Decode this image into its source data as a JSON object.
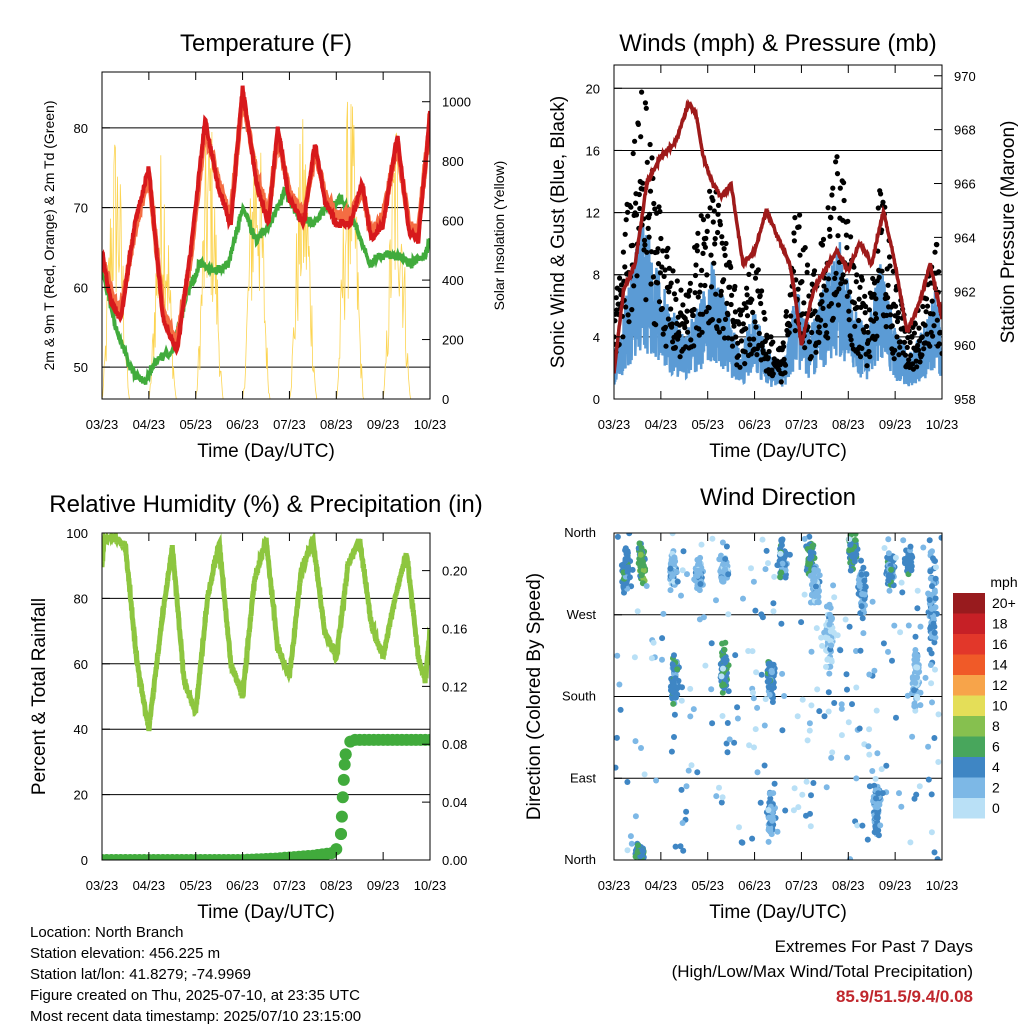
{
  "chart_data": [
    {
      "id": "temperature",
      "type": "line",
      "title": "Temperature (F)",
      "xlabel": "Time (Day/UTC)",
      "ylabel": "2m & 9m T (Red, Orange) & 2m Td (Green)",
      "ylabel_right": "Solar Insolation (Yellow)",
      "x_ticks": [
        "03/23",
        "04/23",
        "05/23",
        "06/23",
        "07/23",
        "08/23",
        "09/23",
        "10/23"
      ],
      "xlim": [
        0,
        7
      ],
      "ylim": [
        46,
        87
      ],
      "y_ticks": [
        50,
        60,
        70,
        80
      ],
      "ylim_right": [
        0,
        1100
      ],
      "y_ticks_right": [
        0,
        200,
        400,
        600,
        800,
        1000
      ],
      "grid": true,
      "series": [
        {
          "label": "2m T",
          "color": "#d7191c",
          "x": [
            0,
            0.2,
            0.4,
            0.7,
            1.0,
            1.3,
            1.6,
            1.9,
            2.2,
            2.5,
            2.75,
            3.0,
            3.3,
            3.55,
            3.75,
            4.0,
            4.3,
            4.55,
            4.75,
            5.0,
            5.3,
            5.55,
            5.75,
            6.0,
            6.3,
            6.55,
            6.75,
            7.0
          ],
          "y": [
            64,
            58,
            56,
            68,
            75,
            56,
            52,
            65,
            81,
            72,
            68,
            85,
            73,
            68,
            80,
            71,
            68,
            78,
            71,
            68,
            68,
            73,
            66,
            68,
            79,
            67,
            66,
            82
          ]
        },
        {
          "label": "9m T",
          "color": "#f46d43",
          "x": [
            0,
            0.2,
            0.4,
            0.7,
            1.0,
            1.3,
            1.6,
            1.9,
            2.2,
            2.5,
            2.75,
            3.0,
            3.3,
            3.55,
            3.75,
            4.0,
            4.3,
            4.55,
            4.75,
            5.0,
            5.3,
            5.55,
            5.75,
            6.0,
            6.3,
            6.55,
            6.75,
            7.0
          ],
          "y": [
            64,
            59,
            57,
            67,
            74,
            57,
            53,
            64,
            80,
            73,
            69,
            84,
            74,
            69,
            79,
            72,
            69,
            77,
            72,
            69,
            69,
            72,
            67,
            69,
            78,
            68,
            67,
            81
          ]
        },
        {
          "label": "2m Td",
          "color": "#41ab3c",
          "x": [
            0,
            0.3,
            0.6,
            0.9,
            1.2,
            1.5,
            1.8,
            2.1,
            2.4,
            2.7,
            3.0,
            3.3,
            3.6,
            3.9,
            4.2,
            4.5,
            4.8,
            5.1,
            5.4,
            5.7,
            6.0,
            6.3,
            6.6,
            6.9,
            7.0
          ],
          "y": [
            62,
            55,
            50,
            48,
            51,
            52,
            59,
            63,
            62,
            63,
            70,
            66,
            68,
            72,
            69,
            68,
            70,
            71,
            68,
            63,
            64,
            64,
            63,
            64,
            66
          ]
        },
        {
          "label": "Solar Insolation",
          "color": "#fcd451",
          "axis": "right",
          "peak_x": [
            0.3,
            1.3,
            2.3,
            3.3,
            4.3,
            5.3,
            6.3
          ],
          "peak_y": [
            950,
            880,
            1000,
            1050,
            960,
            1080,
            1020
          ]
        }
      ]
    },
    {
      "id": "winds",
      "type": "scatter",
      "title": "Winds (mph) & Pressure (mb)",
      "xlabel": "Time (Day/UTC)",
      "ylabel": "Sonic Wind & Gust (Blue, Black)",
      "ylabel_right": "Station Pressure (Maroon)",
      "x_ticks": [
        "03/23",
        "04/23",
        "05/23",
        "06/23",
        "07/23",
        "08/23",
        "09/23",
        "10/23"
      ],
      "xlim": [
        0,
        7
      ],
      "ylim": [
        0,
        21.5
      ],
      "y_ticks": [
        0,
        4,
        8,
        12,
        16,
        20
      ],
      "ylim_right": [
        958,
        970.4
      ],
      "y_ticks_right": [
        958,
        960,
        962,
        964,
        966,
        968,
        970
      ],
      "grid": true,
      "series": [
        {
          "label": "Gust",
          "color": "#000000",
          "x": [
            0,
            0.3,
            0.6,
            0.9,
            1.2,
            1.5,
            1.8,
            2.1,
            2.4,
            2.7,
            3.0,
            3.3,
            3.6,
            3.9,
            4.2,
            4.5,
            4.8,
            5.1,
            5.4,
            5.7,
            6.0,
            6.3,
            6.6,
            6.9,
            7.0
          ],
          "y": [
            5,
            12,
            19,
            13,
            8,
            6,
            10,
            14,
            9,
            5,
            9,
            4,
            3,
            12,
            7,
            10,
            16,
            9,
            6,
            13,
            7,
            4,
            6,
            10,
            5
          ]
        },
        {
          "label": "Sonic Wind",
          "color": "#5b9bd5",
          "x": [
            0,
            0.3,
            0.6,
            0.9,
            1.2,
            1.5,
            1.8,
            2.1,
            2.4,
            2.7,
            3.0,
            3.3,
            3.6,
            3.9,
            4.2,
            4.5,
            4.8,
            5.1,
            5.4,
            5.7,
            6.0,
            6.3,
            6.6,
            6.9,
            7.0
          ],
          "y": [
            2,
            5,
            8,
            6,
            4,
            3,
            4,
            6,
            4,
            2,
            4,
            2,
            1.5,
            5,
            3,
            5,
            7,
            4,
            3,
            6,
            3,
            2,
            3,
            5,
            2
          ]
        },
        {
          "label": "Station Pressure",
          "color": "#9e1a1a",
          "axis": "right",
          "x": [
            0,
            0.2,
            0.45,
            0.7,
            1.0,
            1.3,
            1.6,
            1.75,
            1.9,
            2.1,
            2.3,
            2.5,
            2.75,
            3.0,
            3.25,
            3.5,
            3.75,
            3.85,
            4.0,
            4.25,
            4.5,
            4.75,
            5.0,
            5.25,
            5.5,
            5.75,
            6.0,
            6.25,
            6.5,
            6.75,
            7.0
          ],
          "y": [
            959,
            962,
            963,
            966,
            967,
            967.5,
            969,
            968.6,
            967,
            966,
            965.5,
            966,
            963,
            963.5,
            965,
            964,
            963,
            962,
            960,
            962,
            962.8,
            963.5,
            962.8,
            963.8,
            963,
            965,
            963,
            960.5,
            961.5,
            963,
            961
          ]
        }
      ]
    },
    {
      "id": "humidity",
      "type": "line",
      "title": "Relative Humidity (%) & Precipitation (in)",
      "xlabel": "Time (Day/UTC)",
      "ylabel": "Percent & Total Rainfall",
      "x_ticks": [
        "03/23",
        "04/23",
        "05/23",
        "06/23",
        "07/23",
        "08/23",
        "09/23",
        "10/23"
      ],
      "xlim": [
        0,
        7
      ],
      "ylim": [
        0,
        100
      ],
      "y_ticks": [
        0,
        20,
        40,
        60,
        80,
        100
      ],
      "ylim_right": [
        0,
        0.226
      ],
      "y_ticks_right": [
        "0.00",
        "0.04",
        "0.08",
        "0.12",
        "0.16",
        "0.20"
      ],
      "grid": true,
      "series": [
        {
          "label": "Relative Humidity",
          "color": "#8dc63f",
          "x": [
            0,
            0.05,
            0.2,
            0.5,
            0.75,
            1.0,
            1.25,
            1.5,
            1.75,
            2.0,
            2.25,
            2.5,
            2.75,
            3.0,
            3.25,
            3.5,
            3.75,
            4.0,
            4.25,
            4.5,
            4.75,
            5.0,
            5.25,
            5.5,
            5.75,
            6.0,
            6.25,
            6.5,
            6.75,
            6.9,
            7.0
          ],
          "y": [
            90,
            98,
            99,
            96,
            60,
            40,
            70,
            96,
            55,
            45,
            80,
            97,
            60,
            50,
            85,
            98,
            65,
            56,
            88,
            98,
            70,
            62,
            90,
            98,
            72,
            62,
            80,
            94,
            62,
            55,
            70
          ]
        },
        {
          "label": "Total Precipitation",
          "color": "#41ab3c",
          "axis": "right",
          "x": [
            0,
            1,
            2,
            3,
            3.7,
            4.5,
            4.95,
            5.05,
            5.1,
            5.12,
            5.15,
            5.18,
            5.22,
            5.35,
            6,
            7
          ],
          "y": [
            0,
            0,
            0,
            0,
            0.001,
            0.003,
            0.005,
            0.01,
            0.018,
            0.03,
            0.05,
            0.066,
            0.08,
            0.083,
            0.083,
            0.083
          ]
        }
      ]
    },
    {
      "id": "wind_direction",
      "type": "scatter",
      "title": "Wind Direction",
      "xlabel": "Time (Day/UTC)",
      "ylabel": "Direction (Colored By Speed)",
      "x_ticks": [
        "03/23",
        "04/23",
        "05/23",
        "06/23",
        "07/23",
        "08/23",
        "09/23",
        "10/23"
      ],
      "xlim": [
        0,
        7
      ],
      "ylim": [
        0,
        360
      ],
      "y_ticks": [
        "North",
        "East",
        "South",
        "West",
        "North"
      ],
      "grid": true,
      "legend": {
        "title": "mph",
        "placement": "right",
        "labels": [
          "20+",
          "18",
          "16",
          "14",
          "12",
          "10",
          "8",
          "6",
          "4",
          "2",
          "0"
        ],
        "colors": [
          "#981b1e",
          "#c62026",
          "#e2372a",
          "#f05a28",
          "#f7a44a",
          "#e4de58",
          "#86c04f",
          "#48a65c",
          "#3f86c4",
          "#7db8e6",
          "#b9e0f6"
        ]
      },
      "clusters": [
        {
          "x": 0.25,
          "dir": 320,
          "spread": 35,
          "speed": 4
        },
        {
          "x": 0.6,
          "dir": 330,
          "spread": 30,
          "speed": 6
        },
        {
          "x": 0.55,
          "dir": 10,
          "spread": 10,
          "speed": 5
        },
        {
          "x": 1.3,
          "dir": 200,
          "spread": 40,
          "speed": 4
        },
        {
          "x": 1.25,
          "dir": 320,
          "spread": 25,
          "speed": 2
        },
        {
          "x": 1.8,
          "dir": 315,
          "spread": 20,
          "speed": 2
        },
        {
          "x": 2.35,
          "dir": 210,
          "spread": 40,
          "speed": 5
        },
        {
          "x": 2.35,
          "dir": 320,
          "spread": 20,
          "speed": 2
        },
        {
          "x": 3.35,
          "dir": 200,
          "spread": 35,
          "speed": 4
        },
        {
          "x": 3.35,
          "dir": 50,
          "spread": 30,
          "speed": 3
        },
        {
          "x": 3.6,
          "dir": 330,
          "spread": 35,
          "speed": 4
        },
        {
          "x": 4.2,
          "dir": 330,
          "spread": 30,
          "speed": 5
        },
        {
          "x": 4.3,
          "dir": 300,
          "spread": 30,
          "speed": 2
        },
        {
          "x": 4.6,
          "dir": 250,
          "spread": 50,
          "speed": 1
        },
        {
          "x": 5.1,
          "dir": 340,
          "spread": 25,
          "speed": 5
        },
        {
          "x": 5.3,
          "dir": 300,
          "spread": 40,
          "speed": 3
        },
        {
          "x": 5.6,
          "dir": 60,
          "spread": 40,
          "speed": 3
        },
        {
          "x": 5.9,
          "dir": 320,
          "spread": 30,
          "speed": 4
        },
        {
          "x": 6.3,
          "dir": 330,
          "spread": 20,
          "speed": 4
        },
        {
          "x": 6.45,
          "dir": 200,
          "spread": 50,
          "speed": 2
        },
        {
          "x": 6.8,
          "dir": 280,
          "spread": 80,
          "speed": 3
        }
      ]
    }
  ],
  "info": {
    "location": "Location: North Branch",
    "elevation": "Station elevation: 456.225 m",
    "latlon": "Station lat/lon: 41.8279; -74.9969",
    "created": "Figure created on Thu, 2025-07-10, at 23:35 UTC",
    "recent": "Most recent data timestamp: 2025/07/10 23:15:00"
  },
  "extremes": {
    "line1": "Extremes For Past 7 Days",
    "line2": "(High/Low/Max Wind/Total Precipitation)",
    "values": "85.9/51.5/9.4/0.08"
  }
}
